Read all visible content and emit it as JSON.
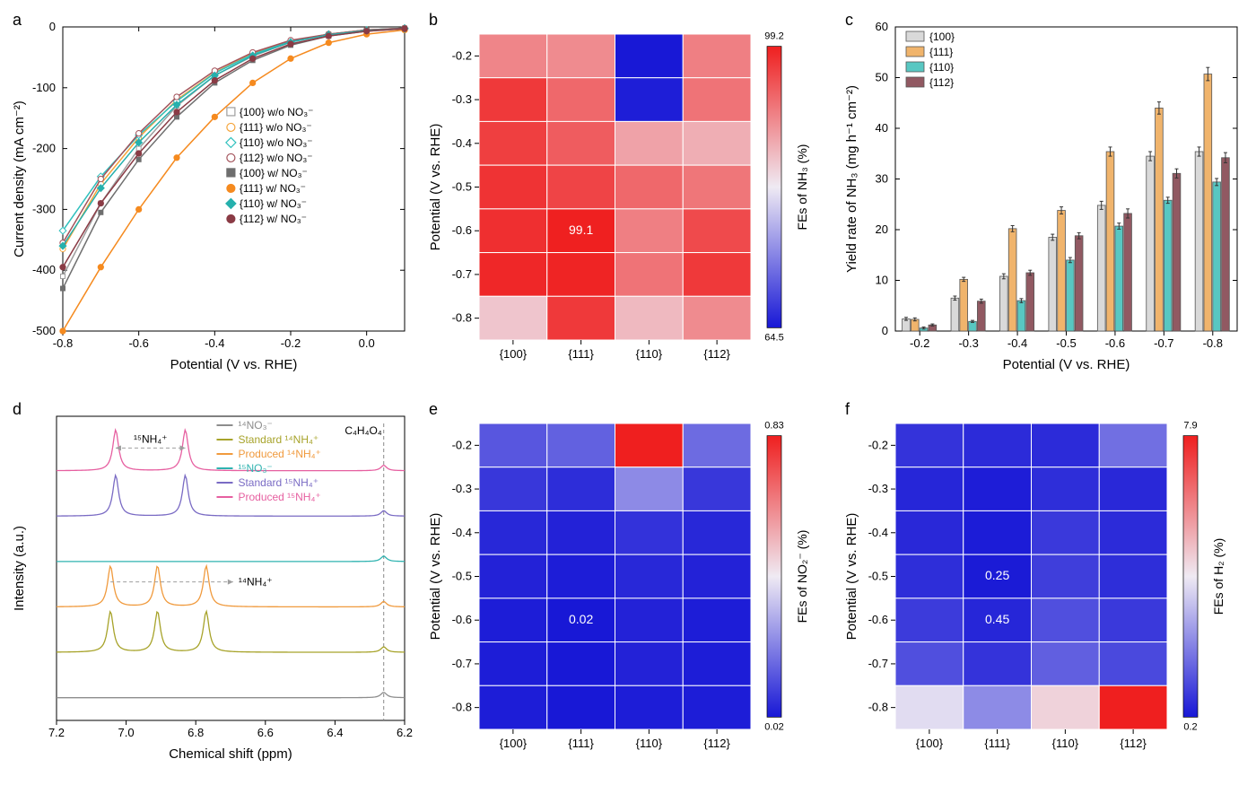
{
  "background_color": "#ffffff",
  "panel_labels": {
    "a": "a",
    "b": "b",
    "c": "c",
    "d": "d",
    "e": "e",
    "f": "f"
  },
  "facets": [
    "{100}",
    "{111}",
    "{110}",
    "{112}"
  ],
  "potentials_heatmap": [
    -0.2,
    -0.3,
    -0.4,
    -0.5,
    -0.6,
    -0.7,
    -0.8
  ],
  "panel_a": {
    "type": "line",
    "title": "",
    "xlabel": "Potential (V vs. RHE)",
    "ylabel": "Current density (mA cm⁻²)",
    "xlim": [
      -0.8,
      0.1
    ],
    "ylim": [
      -500,
      0
    ],
    "xticks": [
      -0.8,
      -0.6,
      -0.4,
      -0.2,
      0.0
    ],
    "yticks": [
      -500,
      -400,
      -300,
      -200,
      -100,
      0
    ],
    "x_sample": [
      -0.8,
      -0.7,
      -0.6,
      -0.5,
      -0.4,
      -0.3,
      -0.2,
      -0.1,
      0.0,
      0.1
    ],
    "series": [
      {
        "key": "100_wo",
        "label": "{100} w/o NO₃⁻",
        "color": "#9e9e9e",
        "marker": "square-open",
        "y": [
          -410,
          -290,
          -200,
          -130,
          -80,
          -48,
          -25,
          -12,
          -5,
          -2
        ]
      },
      {
        "key": "111_wo",
        "label": "{111} w/o NO₃⁻",
        "color": "#f5a43a",
        "marker": "circle-open",
        "y": [
          -365,
          -258,
          -182,
          -120,
          -75,
          -44,
          -23,
          -12,
          -5,
          -2
        ]
      },
      {
        "key": "110_wo",
        "label": "{110} w/o NO₃⁻",
        "color": "#2fc0bd",
        "marker": "diamond-open",
        "y": [
          -335,
          -246,
          -178,
          -122,
          -76,
          -45,
          -24,
          -12,
          -5,
          -2
        ]
      },
      {
        "key": "112_wo",
        "label": "{112} w/o NO₃⁻",
        "color": "#a3535b",
        "marker": "circle-open",
        "y": [
          -355,
          -250,
          -175,
          -115,
          -72,
          -42,
          -22,
          -12,
          -5,
          -2
        ]
      },
      {
        "key": "100_w",
        "label": "{100} w/ NO₃⁻",
        "color": "#6e6e6e",
        "marker": "square",
        "y": [
          -430,
          -305,
          -218,
          -148,
          -92,
          -55,
          -30,
          -15,
          -7,
          -3
        ]
      },
      {
        "key": "111_w",
        "label": "{111} w/ NO₃⁻",
        "color": "#f58a1f",
        "marker": "circle",
        "y": [
          -500,
          -395,
          -300,
          -215,
          -148,
          -92,
          -52,
          -26,
          -12,
          -5
        ]
      },
      {
        "key": "110_w",
        "label": "{110} w/ NO₃⁻",
        "color": "#26b0ad",
        "marker": "diamond",
        "y": [
          -360,
          -265,
          -190,
          -128,
          -80,
          -47,
          -25,
          -13,
          -6,
          -3
        ]
      },
      {
        "key": "112_w",
        "label": "{112} w/ NO₃⁻",
        "color": "#8a3b45",
        "marker": "circle",
        "y": [
          -395,
          -290,
          -208,
          -140,
          -88,
          -52,
          -28,
          -15,
          -7,
          -3
        ]
      }
    ],
    "marker_size": 5,
    "line_width": 1.5
  },
  "panel_b": {
    "type": "heatmap",
    "ylabel": "Potential (V vs. RHE)",
    "colorbar_label": "FEs of NH₃ (%)",
    "cmin": 64.5,
    "cmax": 99.2,
    "cmin_text": "64.5",
    "cmax_text": "99.2",
    "annot": {
      "row": 4,
      "col": 1,
      "text": "99.1"
    },
    "values": [
      [
        90.5,
        90.0,
        64.5,
        91.0
      ],
      [
        97.0,
        93.0,
        65.0,
        92.0
      ],
      [
        96.5,
        94.0,
        88.0,
        87.0
      ],
      [
        97.5,
        96.0,
        93.0,
        91.8
      ],
      [
        97.8,
        99.1,
        91.0,
        95.5
      ],
      [
        98.5,
        98.8,
        92.0,
        97.0
      ],
      [
        85.0,
        97.0,
        86.0,
        90.0
      ]
    ]
  },
  "panel_c": {
    "type": "grouped-bar",
    "xlabel": "Potential (V vs. RHE)",
    "ylabel": "Yield rate of NH₃ (mg h⁻¹ cm⁻²)",
    "ylim": [
      0,
      60
    ],
    "yticks": [
      0,
      10,
      20,
      30,
      40,
      50,
      60
    ],
    "categories": [
      "-0.2",
      "-0.3",
      "-0.4",
      "-0.5",
      "-0.6",
      "-0.7",
      "-0.8"
    ],
    "series": [
      {
        "key": "100",
        "label": "{100}",
        "color": "#d9d9d9",
        "values": [
          2.4,
          6.5,
          10.8,
          18.5,
          24.8,
          34.5,
          35.4
        ],
        "err": [
          0.3,
          0.4,
          0.5,
          0.6,
          0.8,
          0.9,
          0.9
        ]
      },
      {
        "key": "111",
        "label": "{111}",
        "color": "#f0b46c",
        "values": [
          2.3,
          10.2,
          20.2,
          23.8,
          35.4,
          44.0,
          50.7
        ],
        "err": [
          0.3,
          0.4,
          0.6,
          0.7,
          0.9,
          1.2,
          1.3
        ]
      },
      {
        "key": "110",
        "label": "{110}",
        "color": "#58c7c2",
        "values": [
          0.6,
          1.9,
          6.0,
          14.0,
          20.7,
          25.8,
          29.4
        ],
        "err": [
          0.2,
          0.2,
          0.4,
          0.5,
          0.6,
          0.6,
          0.7
        ]
      },
      {
        "key": "112",
        "label": "{112}",
        "color": "#915962",
        "values": [
          1.2,
          5.9,
          11.5,
          18.8,
          23.2,
          31.1,
          34.2
        ],
        "err": [
          0.2,
          0.4,
          0.5,
          0.6,
          0.9,
          0.9,
          1.0
        ]
      }
    ],
    "bar_group_width": 0.72,
    "bar_gap": 0.02
  },
  "panel_d": {
    "type": "nmr-stack",
    "xlabel": "Chemical shift (ppm)",
    "ylabel": "Intensity (a.u.)",
    "xlim": [
      7.2,
      6.2
    ],
    "xticks": [
      7.2,
      7.0,
      6.8,
      6.6,
      6.4,
      6.2
    ],
    "traces": [
      {
        "key": "14NO3",
        "label": "¹⁴NO₃⁻",
        "color": "#8d8d8d",
        "baseline": 0,
        "peaks": []
      },
      {
        "key": "std14NH4",
        "label": "Standard ¹⁴NH₄⁺",
        "color": "#a7a32a",
        "baseline": 1,
        "peaks": [
          7.045,
          6.91,
          6.77
        ]
      },
      {
        "key": "prod14NH4",
        "label": "Produced ¹⁴NH₄⁺",
        "color": "#f09a3d",
        "baseline": 2,
        "peaks": [
          7.045,
          6.91,
          6.77
        ]
      },
      {
        "key": "15NO3",
        "label": "¹⁵NO₃⁻",
        "color": "#2fb3b0",
        "baseline": 3,
        "peaks": []
      },
      {
        "key": "std15NH4",
        "label": "Standard ¹⁵NH₄⁺",
        "color": "#7a6bc4",
        "baseline": 4,
        "peaks": [
          7.03,
          6.83
        ]
      },
      {
        "key": "prod15NH4",
        "label": "Produced ¹⁵NH₄⁺",
        "color": "#e65fa0",
        "baseline": 5,
        "peaks": [
          7.03,
          6.83
        ]
      }
    ],
    "peak_height": 0.9,
    "half_width_ppm": 0.01,
    "ref_line_ppm": 6.26,
    "ref_label": "C₄H₄O₄",
    "annot_15NH4": "¹⁵NH₄⁺",
    "annot_14NH4": "¹⁴NH₄⁺",
    "arrow_color": "#9e9e9e"
  },
  "panel_e": {
    "type": "heatmap",
    "ylabel": "Potential (V vs. RHE)",
    "colorbar_label": "FEs of NO₂⁻ (%)",
    "cmin": 0.02,
    "cmax": 0.83,
    "cmin_text": "0.02",
    "cmax_text": "0.83",
    "annot": {
      "row": 4,
      "col": 1,
      "text": "0.02"
    },
    "values": [
      [
        0.14,
        0.16,
        0.83,
        0.18
      ],
      [
        0.08,
        0.06,
        0.24,
        0.08
      ],
      [
        0.05,
        0.04,
        0.07,
        0.05
      ],
      [
        0.04,
        0.03,
        0.05,
        0.04
      ],
      [
        0.03,
        0.02,
        0.04,
        0.03
      ],
      [
        0.03,
        0.02,
        0.04,
        0.03
      ],
      [
        0.03,
        0.02,
        0.03,
        0.03
      ]
    ]
  },
  "panel_f": {
    "type": "heatmap",
    "ylabel": "Potential (V vs. RHE)",
    "colorbar_label": "FEs of H₂ (%)",
    "cmin": 0.2,
    "cmax": 7.9,
    "cmin_text": "0.2",
    "cmax_text": "7.9",
    "annot1": {
      "row": 3,
      "col": 1,
      "text": "0.25"
    },
    "annot2": {
      "row": 4,
      "col": 1,
      "text": "0.45"
    },
    "values": [
      [
        0.7,
        0.55,
        0.55,
        1.8
      ],
      [
        0.45,
        0.3,
        0.6,
        0.5
      ],
      [
        0.5,
        0.28,
        0.8,
        0.55
      ],
      [
        0.6,
        0.25,
        0.9,
        0.6
      ],
      [
        0.85,
        0.45,
        1.2,
        0.8
      ],
      [
        1.2,
        0.7,
        1.5,
        1.1
      ],
      [
        3.8,
        2.3,
        4.5,
        7.9
      ]
    ]
  },
  "heatmap_colorscale": {
    "low": "#1818d6",
    "mid": "#efeaf3",
    "high": "#ef1f1f"
  }
}
